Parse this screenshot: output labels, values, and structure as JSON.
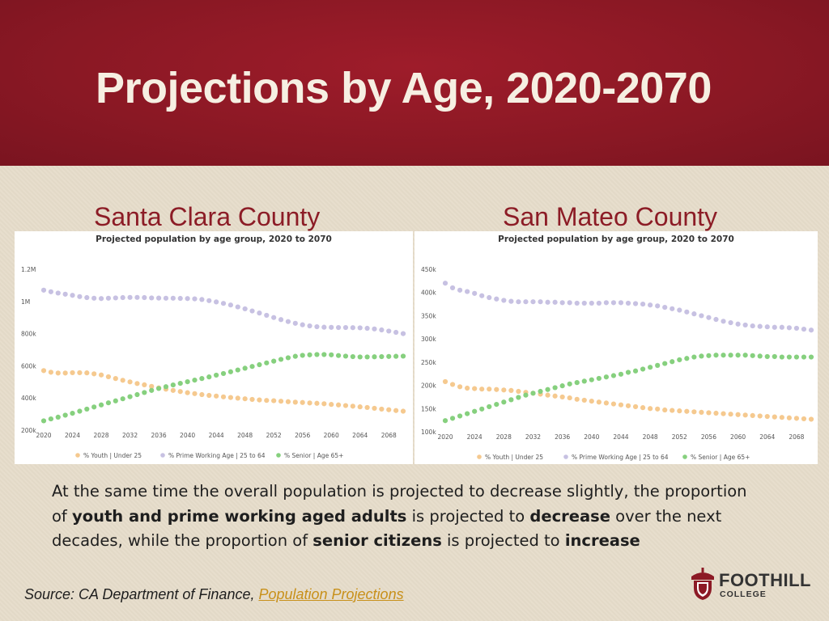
{
  "slide": {
    "title": "Projections by Age, 2020-2070",
    "counties": {
      "left": "Santa Clara County",
      "right": "San Mateo County"
    },
    "body": {
      "p1": "At the same time the overall population is projected to decrease slightly, the proportion of ",
      "b1": "youth and prime working aged adults",
      "p2": " is projected to ",
      "b2": "decrease",
      "p3": " over the next decades, while the proportion of ",
      "b3": "senior citizens",
      "p4": " is projected to ",
      "b4": "increase"
    },
    "source": {
      "prefix": "Source: CA Department of Finance, ",
      "link": "Population Projections"
    },
    "logo": {
      "name": "FOOTHILL",
      "sub": "COLLEGE"
    },
    "colors": {
      "youth": "#f5c98f",
      "prime": "#c7c1e2",
      "senior": "#86d07e",
      "title_bar": "#8c1a25",
      "county": "#8c1c26",
      "link": "#c8901a"
    }
  },
  "chart_data": [
    {
      "type": "scatter",
      "title": "Projected population by age group, 2020 to 2070",
      "x_ticks": [
        "2020",
        "2024",
        "2028",
        "2032",
        "2036",
        "2040",
        "2044",
        "2048",
        "2052",
        "2056",
        "2060",
        "2064",
        "2068"
      ],
      "x_range": [
        2020,
        2070
      ],
      "y_ticks": [
        "200k",
        "400k",
        "600k",
        "800k",
        "1M",
        "1.2M"
      ],
      "y_tick_values": [
        200000,
        400000,
        600000,
        800000,
        1000000,
        1200000
      ],
      "ylim": [
        200000,
        1200000
      ],
      "legend": [
        "% Youth | Under 25",
        "% Prime Working Age | 25 to 64",
        "% Senior | Age 65+"
      ],
      "series": [
        {
          "name": "% Youth | Under 25",
          "values": [
            570000,
            560000,
            555000,
            555000,
            557000,
            557000,
            556000,
            550000,
            543000,
            532000,
            521000,
            510000,
            500000,
            490000,
            482000,
            472000,
            463000,
            455000,
            447000,
            440000,
            433000,
            427000,
            421000,
            416000,
            412000,
            407000,
            403000,
            399000,
            395000,
            391000,
            388000,
            385000,
            383000,
            380000,
            377000,
            374000,
            372000,
            369000,
            367000,
            364000,
            360000,
            357000,
            353000,
            349000,
            345000,
            341000,
            336000,
            331000,
            327000,
            322000,
            318000
          ]
        },
        {
          "name": "% Prime Working Age | 25 to 64",
          "values": [
            1070000,
            1060000,
            1052000,
            1045000,
            1038000,
            1030000,
            1024000,
            1020000,
            1018000,
            1020000,
            1022000,
            1024000,
            1025000,
            1025000,
            1024000,
            1022000,
            1021000,
            1020000,
            1020000,
            1019000,
            1018000,
            1016000,
            1012000,
            1005000,
            997000,
            988000,
            978000,
            966000,
            954000,
            941000,
            928000,
            914000,
            900000,
            887000,
            875000,
            864000,
            855000,
            848000,
            843000,
            840000,
            839000,
            838000,
            838000,
            837000,
            836000,
            833000,
            829000,
            823000,
            816000,
            808000,
            800000
          ]
        },
        {
          "name": "% Senior | Age 65+",
          "values": [
            258000,
            270000,
            281000,
            293000,
            305000,
            318000,
            331000,
            344000,
            357000,
            370000,
            382000,
            395000,
            408000,
            421000,
            434000,
            447000,
            459000,
            470000,
            481000,
            491000,
            501000,
            511000,
            521000,
            531000,
            542000,
            552000,
            563000,
            574000,
            585000,
            596000,
            607000,
            618000,
            629000,
            640000,
            650000,
            659000,
            665000,
            668000,
            670000,
            670000,
            668000,
            664000,
            660000,
            657000,
            655000,
            655000,
            656000,
            657000,
            658000,
            659000,
            660000
          ]
        }
      ]
    },
    {
      "type": "scatter",
      "title": "Projected population by age group, 2020 to 2070",
      "x_ticks": [
        "2020",
        "2024",
        "2028",
        "2032",
        "2036",
        "2040",
        "2044",
        "2048",
        "2052",
        "2056",
        "2060",
        "2064",
        "2068"
      ],
      "x_range": [
        2020,
        2070
      ],
      "y_ticks": [
        "100k",
        "150k",
        "200k",
        "250k",
        "300k",
        "350k",
        "400k",
        "450k"
      ],
      "y_tick_values": [
        100000,
        150000,
        200000,
        250000,
        300000,
        350000,
        400000,
        450000
      ],
      "ylim": [
        100000,
        450000
      ],
      "legend": [
        "% Youth | Under 25",
        "% Prime Working Age | 25 to 64",
        "% Senior | Age 65+"
      ],
      "series": [
        {
          "name": "% Youth | Under 25",
          "values": [
            208000,
            202000,
            197000,
            194000,
            193000,
            192000,
            192000,
            191000,
            190000,
            189000,
            187000,
            185000,
            183000,
            181000,
            179000,
            177000,
            175000,
            173000,
            170000,
            168000,
            166000,
            164000,
            162000,
            160000,
            158000,
            156000,
            154000,
            152000,
            150000,
            149000,
            147000,
            146000,
            145000,
            144000,
            143000,
            142000,
            141000,
            140000,
            139000,
            138000,
            137000,
            136000,
            135000,
            134000,
            133000,
            132000,
            131000,
            130000,
            129000,
            128000,
            127000
          ]
        },
        {
          "name": "% Prime Working Age | 25 to 64",
          "values": [
            420000,
            410000,
            405000,
            402000,
            398000,
            393000,
            389000,
            386000,
            383000,
            381000,
            380000,
            380000,
            380000,
            380000,
            379000,
            379000,
            378000,
            378000,
            377000,
            377000,
            377000,
            377000,
            378000,
            378000,
            378000,
            377000,
            376000,
            375000,
            373000,
            371000,
            368000,
            365000,
            362000,
            358000,
            354000,
            350000,
            346000,
            342000,
            338000,
            335000,
            332000,
            330000,
            328000,
            327000,
            326000,
            325000,
            325000,
            324000,
            323000,
            321000,
            319000
          ]
        },
        {
          "name": "% Senior | Age 65+",
          "values": [
            124000,
            129000,
            134000,
            139000,
            144000,
            149000,
            154000,
            159000,
            164000,
            169000,
            174000,
            179000,
            183000,
            187000,
            191000,
            195000,
            199000,
            203000,
            206000,
            209000,
            212000,
            215000,
            218000,
            221000,
            224000,
            228000,
            231000,
            235000,
            239000,
            243000,
            247000,
            251000,
            255000,
            258000,
            261000,
            263000,
            264000,
            265000,
            265000,
            265000,
            265000,
            265000,
            264000,
            263000,
            262000,
            262000,
            261000,
            261000,
            261000,
            261000,
            261000
          ]
        }
      ]
    }
  ]
}
